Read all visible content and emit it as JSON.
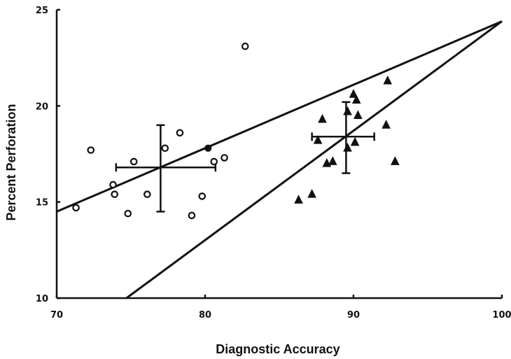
{
  "chart_data": {
    "type": "scatter",
    "title": "",
    "xlabel": "Diagnostic Accuracy",
    "ylabel": "Percent Perforation",
    "xlim": [
      70,
      100
    ],
    "ylim": [
      10,
      25
    ],
    "x_ticks": [
      "70",
      "80",
      "90",
      "100"
    ],
    "y_ticks": [
      "10",
      "15",
      "20",
      "25"
    ],
    "grid": false,
    "series": [
      {
        "marker": "open-circle",
        "points": [
          [
            71.3,
            14.7
          ],
          [
            72.3,
            17.7
          ],
          [
            73.8,
            15.9
          ],
          [
            73.9,
            15.4
          ],
          [
            74.8,
            14.4
          ],
          [
            75.2,
            17.1
          ],
          [
            76.1,
            15.4
          ],
          [
            77.3,
            17.8
          ],
          [
            78.3,
            18.6
          ],
          [
            79.1,
            14.3
          ],
          [
            79.8,
            15.3
          ],
          [
            80.6,
            17.1
          ],
          [
            81.3,
            17.3
          ],
          [
            82.7,
            23.1
          ]
        ]
      },
      {
        "marker": "filled-circle",
        "points": [
          [
            80.2,
            17.8
          ]
        ]
      },
      {
        "marker": "triangle",
        "points": [
          [
            86.3,
            15.1
          ],
          [
            87.2,
            15.4
          ],
          [
            87.6,
            18.2
          ],
          [
            87.9,
            19.3
          ],
          [
            88.2,
            17.0
          ],
          [
            88.6,
            17.1
          ],
          [
            89.6,
            17.8
          ],
          [
            89.6,
            19.7
          ],
          [
            90.0,
            20.6
          ],
          [
            90.1,
            18.1
          ],
          [
            90.2,
            20.3
          ],
          [
            90.3,
            19.5
          ],
          [
            92.2,
            19.0
          ],
          [
            92.3,
            21.3
          ],
          [
            92.8,
            17.1
          ]
        ]
      }
    ],
    "means": [
      {
        "x": 77.0,
        "y": 16.8,
        "x_err": [
          74.0,
          80.7
        ],
        "y_err": [
          14.5,
          19.0
        ]
      },
      {
        "x": 89.5,
        "y": 18.4,
        "x_err": [
          87.2,
          91.4
        ],
        "y_err": [
          16.5,
          20.2
        ]
      }
    ],
    "lines": [
      {
        "from": [
          70,
          14.5
        ],
        "to": [
          100,
          24.4
        ]
      },
      {
        "from": [
          74.7,
          10.0
        ],
        "to": [
          100,
          24.4
        ]
      }
    ]
  }
}
